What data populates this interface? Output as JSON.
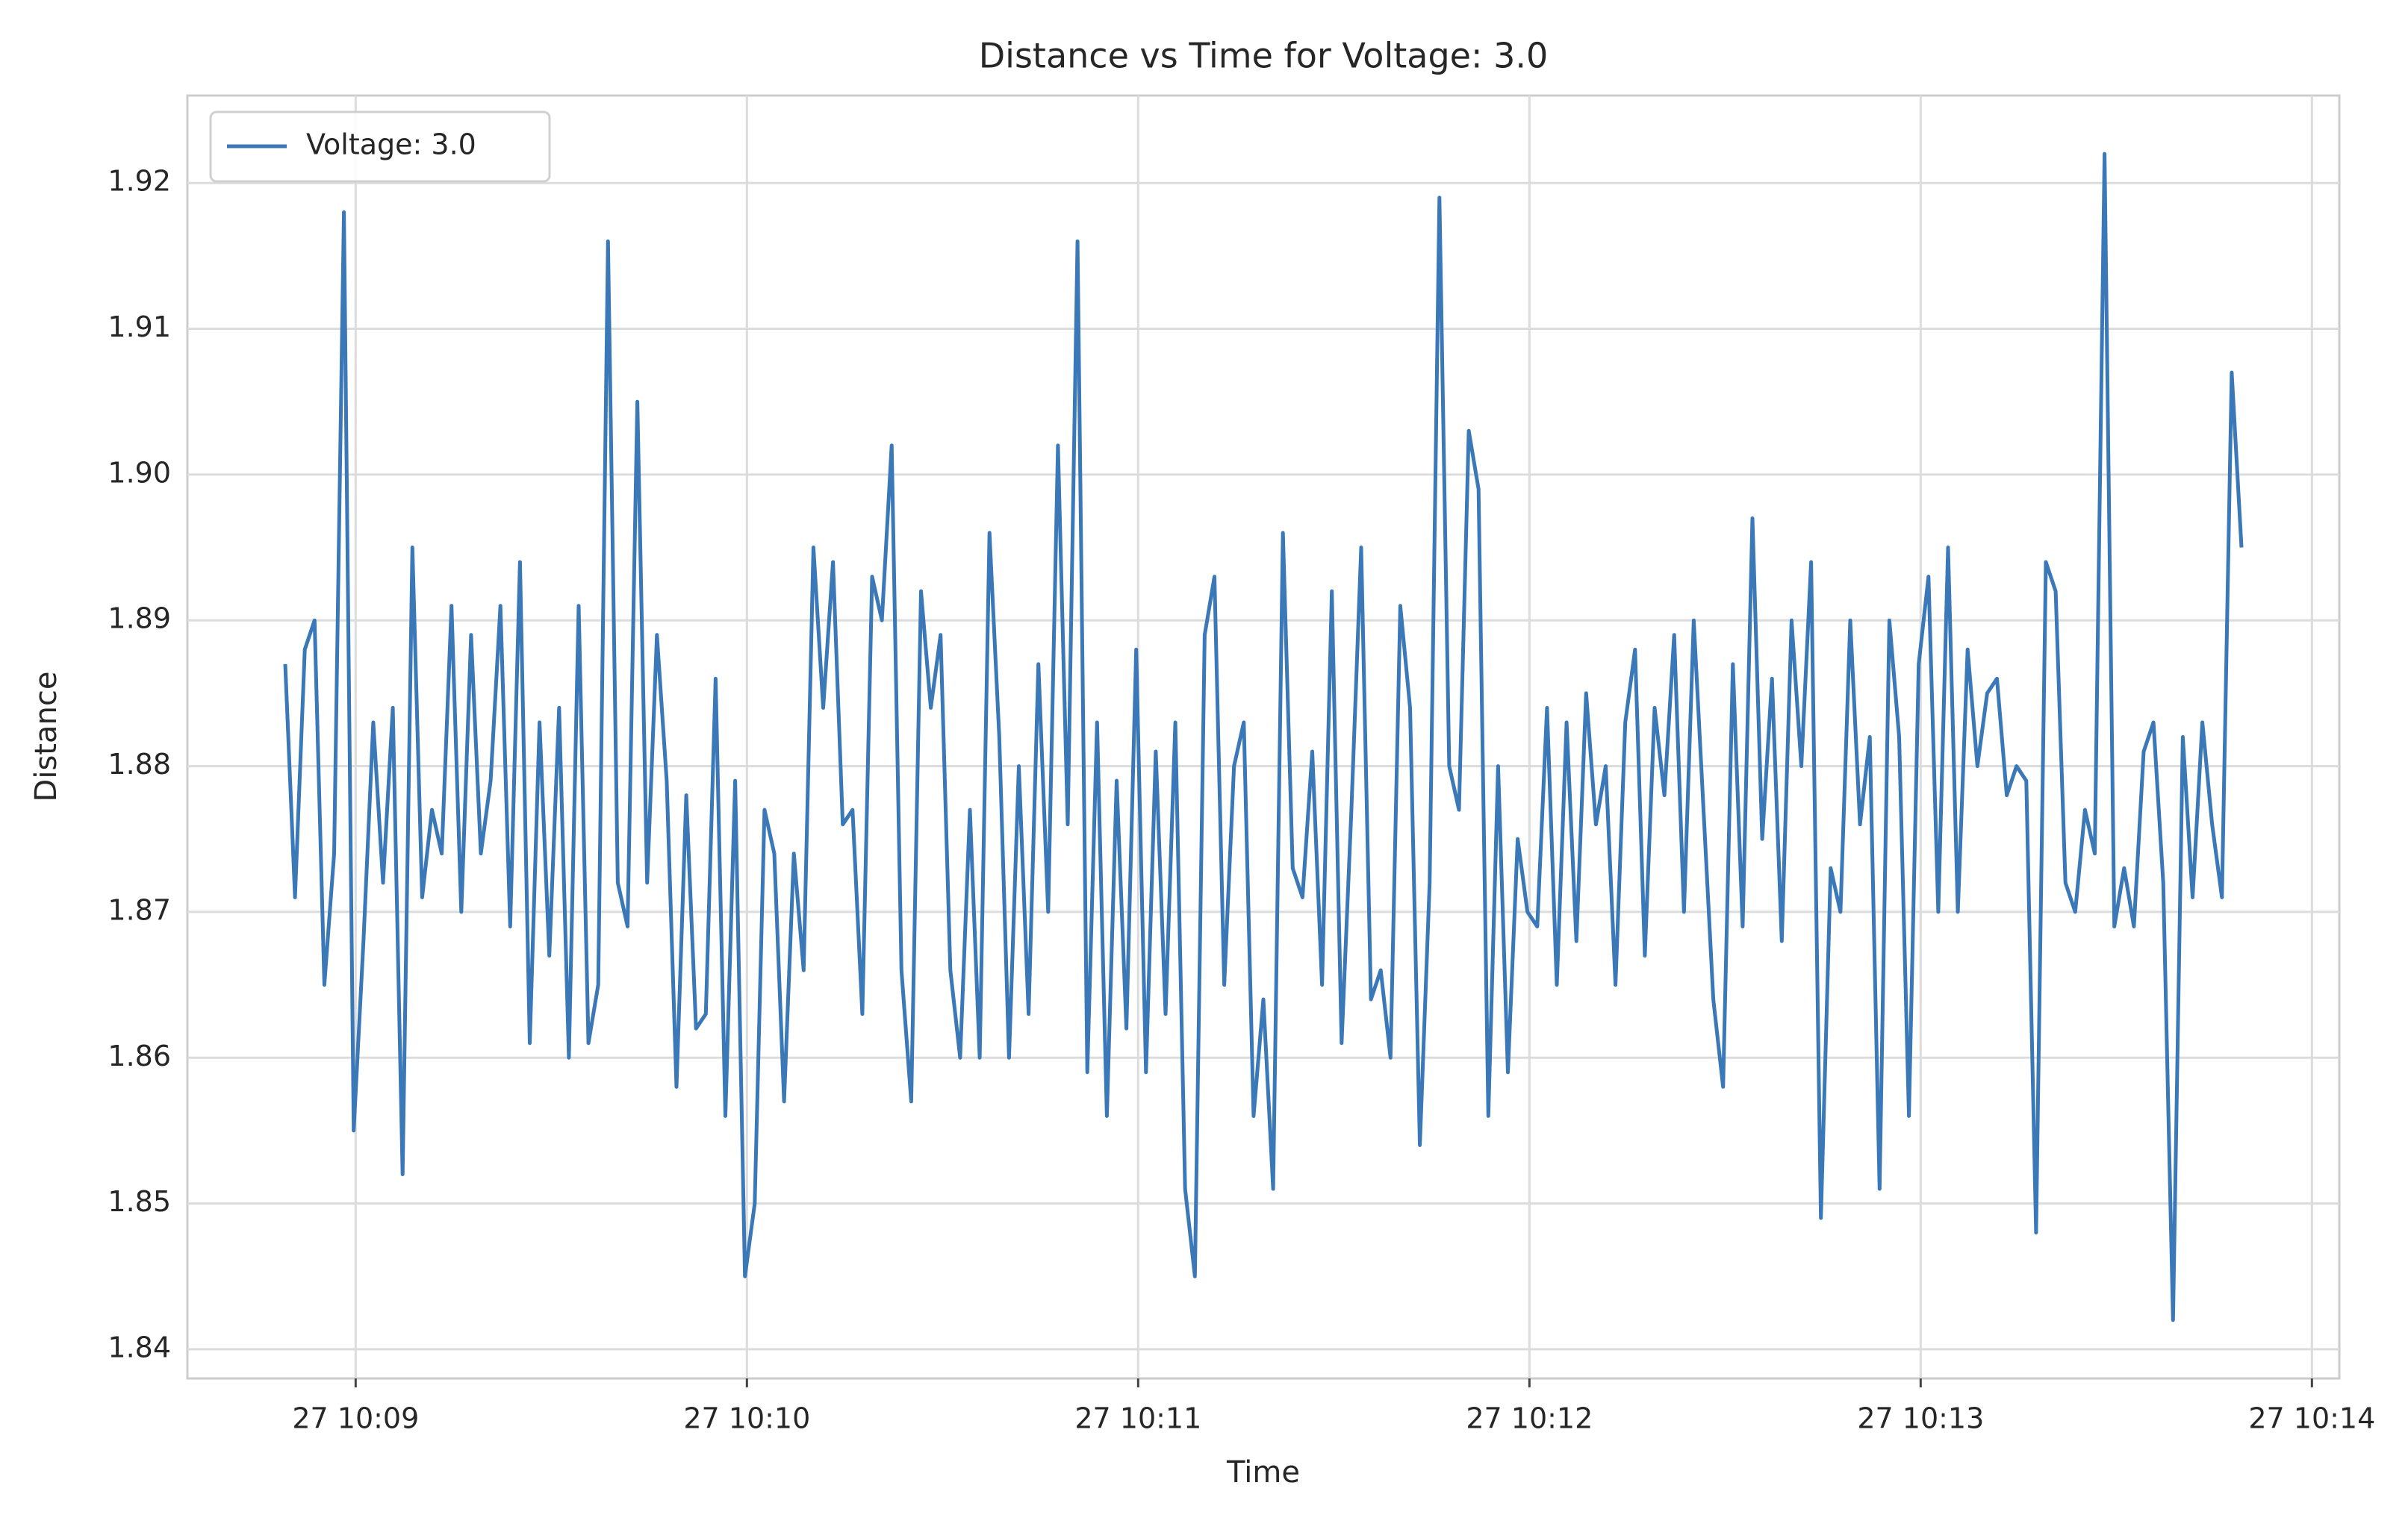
{
  "chart_data": {
    "type": "line",
    "title": "Distance vs Time for Voltage: 3.0",
    "x_label": "Time",
    "y_label": "Distance",
    "legend": "upper left",
    "grid": true,
    "xlim": [
      8.57,
      14.07
    ],
    "xticks": [
      {
        "value": 9,
        "label": "27 10:09"
      },
      {
        "value": 10,
        "label": "27 10:10"
      },
      {
        "value": 11,
        "label": "27 10:11"
      },
      {
        "value": 12,
        "label": "27 10:12"
      },
      {
        "value": 13,
        "label": "27 10:13"
      },
      {
        "value": 14,
        "label": "27 10:14"
      }
    ],
    "ylim": [
      1.838,
      1.926
    ],
    "yticks": [
      1.84,
      1.85,
      1.86,
      1.87,
      1.88,
      1.89,
      {
        "value": 1.9,
        "label": "1.90"
      },
      1.91,
      1.92
    ],
    "x": [
      8.82,
      8.845,
      8.87,
      8.895,
      8.92,
      8.945,
      8.97,
      8.995,
      9.02,
      9.045,
      9.07,
      9.095,
      9.12,
      9.145,
      9.17,
      9.195,
      9.22,
      9.245,
      9.27,
      9.295,
      9.32,
      9.345,
      9.37,
      9.395,
      9.42,
      9.445,
      9.47,
      9.495,
      9.52,
      9.545,
      9.57,
      9.595,
      9.62,
      9.645,
      9.67,
      9.695,
      9.72,
      9.745,
      9.77,
      9.795,
      9.82,
      9.845,
      9.87,
      9.895,
      9.92,
      9.945,
      9.97,
      9.995,
      10.02,
      10.045,
      10.07,
      10.095,
      10.12,
      10.145,
      10.17,
      10.195,
      10.22,
      10.245,
      10.27,
      10.295,
      10.32,
      10.345,
      10.37,
      10.395,
      10.42,
      10.445,
      10.47,
      10.495,
      10.52,
      10.545,
      10.57,
      10.595,
      10.62,
      10.645,
      10.67,
      10.695,
      10.72,
      10.745,
      10.77,
      10.795,
      10.82,
      10.845,
      10.87,
      10.895,
      10.92,
      10.945,
      10.97,
      10.995,
      11.02,
      11.045,
      11.07,
      11.095,
      11.12,
      11.145,
      11.17,
      11.195,
      11.22,
      11.245,
      11.27,
      11.295,
      11.32,
      11.345,
      11.37,
      11.395,
      11.42,
      11.445,
      11.47,
      11.495,
      11.52,
      11.545,
      11.57,
      11.595,
      11.62,
      11.645,
      11.67,
      11.695,
      11.72,
      11.745,
      11.77,
      11.795,
      11.82,
      11.845,
      11.87,
      11.895,
      11.92,
      11.945,
      11.97,
      11.995,
      12.02,
      12.045,
      12.07,
      12.095,
      12.12,
      12.145,
      12.17,
      12.195,
      12.22,
      12.245,
      12.27,
      12.295,
      12.32,
      12.345,
      12.37,
      12.395,
      12.42,
      12.445,
      12.47,
      12.495,
      12.52,
      12.545,
      12.57,
      12.595,
      12.62,
      12.645,
      12.67,
      12.695,
      12.72,
      12.745,
      12.77,
      12.795,
      12.82,
      12.845,
      12.87,
      12.895,
      12.92,
      12.945,
      12.97,
      12.995,
      13.02,
      13.045,
      13.07,
      13.095,
      13.12,
      13.145,
      13.17,
      13.195,
      13.22,
      13.245,
      13.27,
      13.295,
      13.32,
      13.345,
      13.37,
      13.395,
      13.42,
      13.445,
      13.47,
      13.495,
      13.52,
      13.545,
      13.57,
      13.595,
      13.62,
      13.645,
      13.67,
      13.695,
      13.72,
      13.745,
      13.77,
      13.795,
      13.82
    ],
    "series": [
      {
        "name": "Voltage: 3.0",
        "color": "#3a78b8",
        "values": [
          1.887,
          1.871,
          1.888,
          1.89,
          1.865,
          1.874,
          1.918,
          1.855,
          1.868,
          1.883,
          1.872,
          1.884,
          1.852,
          1.895,
          1.871,
          1.877,
          1.874,
          1.891,
          1.87,
          1.889,
          1.874,
          1.879,
          1.891,
          1.869,
          1.894,
          1.861,
          1.883,
          1.867,
          1.884,
          1.86,
          1.891,
          1.861,
          1.865,
          1.916,
          1.872,
          1.869,
          1.905,
          1.872,
          1.889,
          1.879,
          1.858,
          1.878,
          1.862,
          1.863,
          1.886,
          1.856,
          1.879,
          1.845,
          1.85,
          1.877,
          1.874,
          1.857,
          1.874,
          1.866,
          1.895,
          1.884,
          1.894,
          1.876,
          1.877,
          1.863,
          1.893,
          1.89,
          1.902,
          1.866,
          1.857,
          1.892,
          1.884,
          1.889,
          1.866,
          1.86,
          1.877,
          1.86,
          1.896,
          1.882,
          1.86,
          1.88,
          1.863,
          1.887,
          1.87,
          1.902,
          1.876,
          1.916,
          1.859,
          1.883,
          1.856,
          1.879,
          1.862,
          1.888,
          1.859,
          1.881,
          1.863,
          1.883,
          1.851,
          1.845,
          1.889,
          1.893,
          1.865,
          1.88,
          1.883,
          1.856,
          1.864,
          1.851,
          1.896,
          1.873,
          1.871,
          1.881,
          1.865,
          1.892,
          1.861,
          1.877,
          1.895,
          1.864,
          1.866,
          1.86,
          1.891,
          1.884,
          1.854,
          1.872,
          1.919,
          1.88,
          1.877,
          1.903,
          1.899,
          1.856,
          1.88,
          1.859,
          1.875,
          1.87,
          1.869,
          1.884,
          1.865,
          1.883,
          1.868,
          1.885,
          1.876,
          1.88,
          1.865,
          1.883,
          1.888,
          1.867,
          1.884,
          1.878,
          1.889,
          1.87,
          1.89,
          1.877,
          1.864,
          1.858,
          1.887,
          1.869,
          1.897,
          1.875,
          1.886,
          1.868,
          1.89,
          1.88,
          1.894,
          1.849,
          1.873,
          1.87,
          1.89,
          1.876,
          1.882,
          1.851,
          1.89,
          1.882,
          1.856,
          1.887,
          1.893,
          1.87,
          1.895,
          1.87,
          1.888,
          1.88,
          1.885,
          1.886,
          1.878,
          1.88,
          1.879,
          1.848,
          1.894,
          1.892,
          1.872,
          1.87,
          1.877,
          1.874,
          1.922,
          1.869,
          1.873,
          1.869,
          1.881,
          1.883,
          1.872,
          1.842,
          1.882,
          1.871,
          1.883,
          1.876,
          1.871,
          1.907,
          1.895
        ]
      }
    ]
  }
}
